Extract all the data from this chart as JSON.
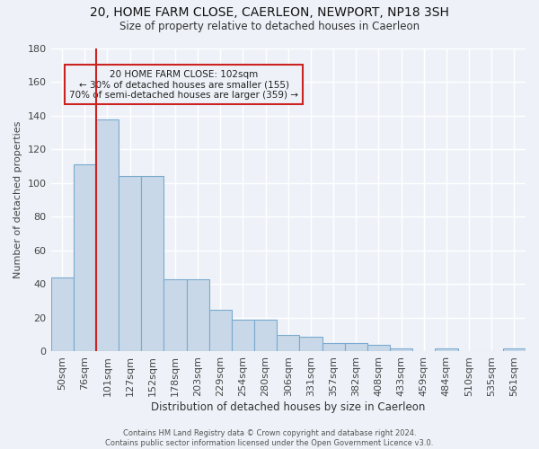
{
  "title": "20, HOME FARM CLOSE, CAERLEON, NEWPORT, NP18 3SH",
  "subtitle": "Size of property relative to detached houses in Caerleon",
  "xlabel": "Distribution of detached houses by size in Caerleon",
  "ylabel": "Number of detached properties",
  "bar_values": [
    44,
    111,
    138,
    104,
    104,
    43,
    43,
    25,
    19,
    19,
    10,
    9,
    5,
    5,
    4,
    2,
    0,
    2,
    0,
    0,
    2
  ],
  "categories": [
    "50sqm",
    "76sqm",
    "101sqm",
    "127sqm",
    "152sqm",
    "178sqm",
    "203sqm",
    "229sqm",
    "254sqm",
    "280sqm",
    "306sqm",
    "331sqm",
    "357sqm",
    "382sqm",
    "408sqm",
    "433sqm",
    "459sqm",
    "484sqm",
    "510sqm",
    "535sqm",
    "561sqm"
  ],
  "bar_color": "#c8d8e8",
  "bar_edge_color": "#7aaad0",
  "bg_color": "#eef2f8",
  "grid_color": "#ffffff",
  "vline_color": "#cc2222",
  "annotation_box_text": "20 HOME FARM CLOSE: 102sqm\n← 30% of detached houses are smaller (155)\n70% of semi-detached houses are larger (359) →",
  "annotation_box_edgecolor": "#cc2222",
  "footer_text": "Contains HM Land Registry data © Crown copyright and database right 2024.\nContains public sector information licensed under the Open Government Licence v3.0.",
  "ylim": [
    0,
    180
  ],
  "yticks": [
    0,
    20,
    40,
    60,
    80,
    100,
    120,
    140,
    160,
    180
  ]
}
